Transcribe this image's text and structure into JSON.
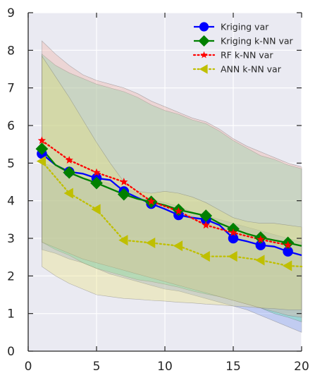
{
  "chart_data": {
    "type": "line",
    "title": "",
    "xlabel": "",
    "ylabel": "",
    "xlim": [
      0,
      20
    ],
    "ylim": [
      0,
      9
    ],
    "xticks": [
      0,
      5,
      10,
      15,
      20
    ],
    "yticks": [
      0,
      1,
      2,
      3,
      4,
      5,
      6,
      7,
      8,
      9
    ],
    "grid": true,
    "background": "#eaeaf2",
    "legend_position": "top-right",
    "series": [
      {
        "name": "Kriging var",
        "color": "#0000ff",
        "linestyle": "solid",
        "marker": "circle",
        "x": [
          1,
          2,
          3,
          4,
          5,
          6,
          7,
          8,
          9,
          10,
          11,
          12,
          13,
          14,
          15,
          16,
          17,
          18,
          19,
          20
        ],
        "y": [
          5.25,
          4.95,
          4.77,
          4.72,
          4.6,
          4.55,
          4.25,
          4.08,
          3.92,
          3.78,
          3.62,
          3.55,
          3.5,
          3.35,
          3.0,
          2.92,
          2.82,
          2.78,
          2.65,
          2.55
        ],
        "marker_x": [
          1,
          3,
          5,
          7,
          9,
          11,
          13,
          15,
          17,
          19
        ],
        "band": {
          "color": "#6a8cf0",
          "upper": [
            5.0,
            4.9,
            4.75,
            4.6,
            4.55,
            4.45,
            4.35,
            4.2,
            4.05,
            3.95,
            3.85,
            3.7,
            3.6,
            3.5,
            3.4,
            3.3,
            3.2,
            3.1,
            3.0,
            2.9
          ],
          "lower": [
            2.7,
            2.6,
            2.45,
            2.35,
            2.2,
            2.05,
            1.95,
            1.85,
            1.75,
            1.65,
            1.6,
            1.5,
            1.4,
            1.3,
            1.2,
            1.1,
            0.95,
            0.8,
            0.65,
            0.5
          ]
        }
      },
      {
        "name": "Kriging k-NN var",
        "color": "#008000",
        "linestyle": "solid",
        "marker": "diamond",
        "x": [
          1,
          2,
          3,
          4,
          5,
          6,
          7,
          8,
          9,
          10,
          11,
          12,
          13,
          14,
          15,
          16,
          17,
          18,
          19,
          20
        ],
        "y": [
          5.38,
          4.95,
          4.75,
          4.6,
          4.47,
          4.32,
          4.17,
          4.05,
          3.97,
          3.88,
          3.76,
          3.68,
          3.6,
          3.4,
          3.25,
          3.12,
          3.02,
          2.95,
          2.88,
          2.8
        ],
        "marker_x": [
          1,
          3,
          5,
          7,
          9,
          11,
          13,
          15,
          17,
          19
        ],
        "band": {
          "color": "#4ce6a0",
          "upper": [
            7.9,
            7.6,
            7.4,
            7.25,
            7.1,
            7.0,
            6.9,
            6.75,
            6.55,
            6.4,
            6.3,
            6.15,
            6.05,
            5.85,
            5.6,
            5.4,
            5.2,
            5.1,
            4.95,
            4.85
          ],
          "lower": [
            2.9,
            2.7,
            2.55,
            2.35,
            2.2,
            2.1,
            2.0,
            1.9,
            1.85,
            1.78,
            1.7,
            1.6,
            1.52,
            1.45,
            1.35,
            1.25,
            1.15,
            1.0,
            0.9,
            0.78
          ]
        }
      },
      {
        "name": "RF k-NN var",
        "color": "#ff0000",
        "linestyle": "dotted",
        "marker": "star",
        "x": [
          1,
          3,
          5,
          7,
          9,
          11,
          13,
          15,
          17,
          19
        ],
        "y": [
          5.6,
          5.08,
          4.75,
          4.5,
          3.98,
          3.72,
          3.35,
          3.15,
          2.97,
          2.82
        ],
        "marker_x": [
          1,
          3,
          5,
          7,
          9,
          11,
          13,
          15,
          17,
          19
        ],
        "band": {
          "color": "#f0a898",
          "upper": [
            8.25,
            7.9,
            7.6,
            7.35,
            7.2,
            7.1,
            7.0,
            6.85,
            6.65,
            6.5,
            6.35,
            6.2,
            6.1,
            5.9,
            5.65,
            5.45,
            5.3,
            5.15,
            5.0,
            4.9
          ],
          "lower": [
            2.9,
            2.75,
            2.6,
            2.45,
            2.35,
            2.25,
            2.15,
            2.05,
            1.95,
            1.85,
            1.75,
            1.65,
            1.55,
            1.45,
            1.35,
            1.25,
            1.15,
            1.05,
            0.95,
            0.9
          ]
        }
      },
      {
        "name": "ANN k-NN var",
        "color": "#bfbf00",
        "linestyle": "dotted",
        "marker": "triangle-left",
        "x": [
          1,
          3,
          5,
          7,
          9,
          11,
          13,
          15,
          17,
          19,
          20
        ],
        "y": [
          5.05,
          4.2,
          3.77,
          2.95,
          2.88,
          2.8,
          2.52,
          2.52,
          2.42,
          2.27,
          2.25
        ],
        "marker_x": [
          1,
          3,
          5,
          7,
          9,
          11,
          13,
          15,
          17,
          19
        ],
        "band": {
          "color": "#e8e070",
          "upper": [
            7.85,
            7.3,
            6.75,
            6.15,
            5.55,
            5.0,
            4.5,
            4.25,
            4.2,
            4.25,
            4.2,
            4.1,
            3.95,
            3.75,
            3.55,
            3.45,
            3.4,
            3.4,
            3.35,
            3.3
          ],
          "lower": [
            2.25,
            2.0,
            1.8,
            1.65,
            1.5,
            1.45,
            1.4,
            1.38,
            1.35,
            1.33,
            1.3,
            1.28,
            1.25,
            1.23,
            1.2,
            1.18,
            1.15,
            1.13,
            1.1,
            1.1
          ]
        }
      }
    ]
  }
}
